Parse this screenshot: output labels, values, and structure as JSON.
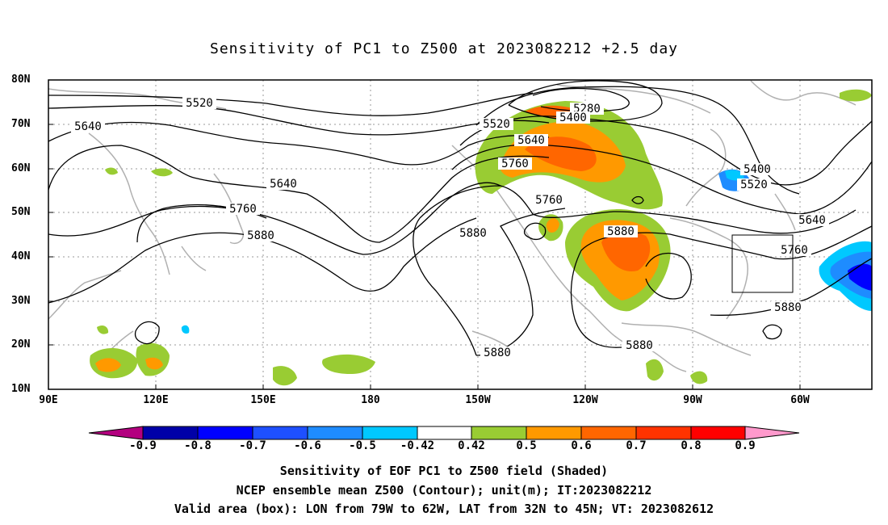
{
  "title": "Sensitivity of PC1 to Z500 at 2023082212 +2.5 day",
  "axes": {
    "lat_labels": [
      "80N",
      "70N",
      "60N",
      "50N",
      "40N",
      "30N",
      "20N",
      "10N"
    ],
    "lon_labels": [
      "90E",
      "120E",
      "150E",
      "180",
      "150W",
      "120W",
      "90W",
      "60W"
    ]
  },
  "contours": {
    "labels": [
      {
        "id": "c5520a",
        "text": "5520"
      },
      {
        "id": "c5640a",
        "text": "5640"
      },
      {
        "id": "c5640b",
        "text": "5640"
      },
      {
        "id": "c5760a",
        "text": "5760"
      },
      {
        "id": "c5880a",
        "text": "5880"
      },
      {
        "id": "c5520b",
        "text": "5520"
      },
      {
        "id": "c5280",
        "text": "5280"
      },
      {
        "id": "c5400a",
        "text": "5400"
      },
      {
        "id": "c5640c",
        "text": "5640"
      },
      {
        "id": "c5760b",
        "text": "5760"
      },
      {
        "id": "c5760c",
        "text": "5760"
      },
      {
        "id": "c5880b",
        "text": "5880"
      },
      {
        "id": "c5880c",
        "text": "5880"
      },
      {
        "id": "c5880d",
        "text": "5880"
      },
      {
        "id": "c5400b",
        "text": "5400"
      },
      {
        "id": "c5520c",
        "text": "5520"
      },
      {
        "id": "c5640d",
        "text": "5640"
      },
      {
        "id": "c5760d",
        "text": "5760"
      },
      {
        "id": "c5880e",
        "text": "5880"
      },
      {
        "id": "c5880f",
        "text": "5880"
      }
    ]
  },
  "colorbar": {
    "colors": [
      "#b3007f",
      "#0000a8",
      "#0000ff",
      "#1e50ff",
      "#1e8cff",
      "#00c8ff",
      "#ffffff",
      "#99cc33",
      "#ff9900",
      "#ff6600",
      "#ff3300",
      "#ff0000",
      "#ff99cc"
    ],
    "labels": [
      "-0.9",
      "-0.8",
      "-0.7",
      "-0.6",
      "-0.5",
      "-0.42",
      "0.42",
      "0.5",
      "0.6",
      "0.7",
      "0.8",
      "0.9"
    ]
  },
  "captions": [
    "Sensitivity of EOF PC1 to Z500 field (Shaded)",
    "NCEP ensemble mean Z500 (Contour); unit(m); IT:2023082212",
    "Valid area (box): LON from 79W to 62W, LAT from 32N to 45N; VT: 2023082612"
  ]
}
